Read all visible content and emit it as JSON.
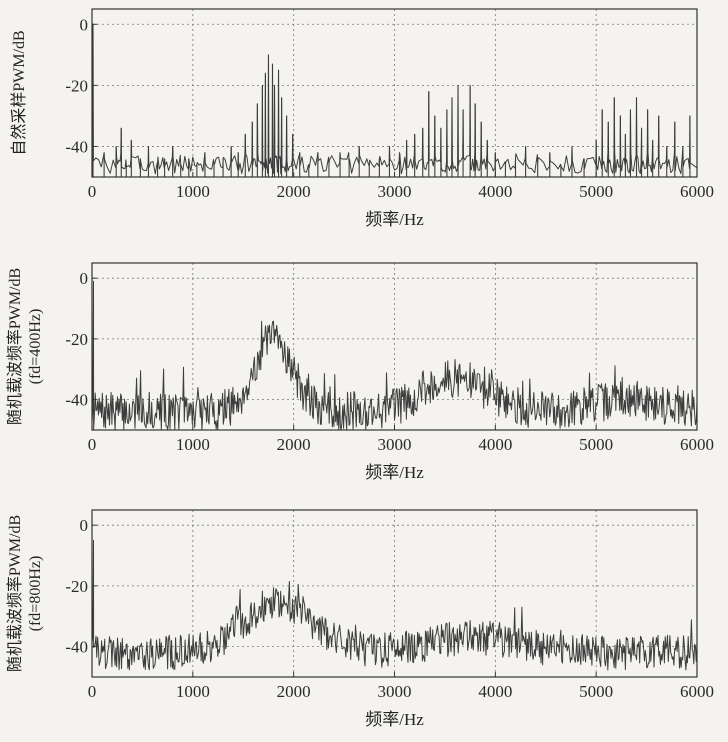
{
  "chart_data": [
    {
      "type": "line",
      "panel": "top",
      "xlabel": "频率/Hz",
      "ylabel_lines": [
        "自然采样PWM/dB"
      ],
      "xlim": [
        0,
        6000
      ],
      "ylim": [
        -50,
        5
      ],
      "xticks": [
        0,
        1000,
        2000,
        3000,
        4000,
        5000,
        6000
      ],
      "yticks": [
        0,
        -20,
        -40
      ],
      "grid": true,
      "signal": {
        "style": "line-spectrum",
        "noise_floor_db": -50,
        "peaks": [
          {
            "x": 10,
            "y": 0
          },
          {
            "x": 120,
            "y": -42
          },
          {
            "x": 240,
            "y": -40
          },
          {
            "x": 290,
            "y": -34
          },
          {
            "x": 340,
            "y": -46
          },
          {
            "x": 390,
            "y": -38
          },
          {
            "x": 480,
            "y": -44
          },
          {
            "x": 560,
            "y": -40
          },
          {
            "x": 650,
            "y": -46
          },
          {
            "x": 720,
            "y": -44
          },
          {
            "x": 800,
            "y": -40
          },
          {
            "x": 880,
            "y": -46
          },
          {
            "x": 960,
            "y": -44
          },
          {
            "x": 1040,
            "y": -46
          },
          {
            "x": 1120,
            "y": -42
          },
          {
            "x": 1210,
            "y": -46
          },
          {
            "x": 1300,
            "y": -44
          },
          {
            "x": 1380,
            "y": -40
          },
          {
            "x": 1450,
            "y": -42
          },
          {
            "x": 1520,
            "y": -36
          },
          {
            "x": 1590,
            "y": -32
          },
          {
            "x": 1640,
            "y": -26
          },
          {
            "x": 1690,
            "y": -20
          },
          {
            "x": 1720,
            "y": -16
          },
          {
            "x": 1750,
            "y": -10
          },
          {
            "x": 1790,
            "y": -13
          },
          {
            "x": 1810,
            "y": -20
          },
          {
            "x": 1850,
            "y": -15
          },
          {
            "x": 1880,
            "y": -24
          },
          {
            "x": 1930,
            "y": -30
          },
          {
            "x": 1990,
            "y": -36
          },
          {
            "x": 2060,
            "y": -42
          },
          {
            "x": 2150,
            "y": -46
          },
          {
            "x": 2240,
            "y": -42
          },
          {
            "x": 2350,
            "y": -46
          },
          {
            "x": 2460,
            "y": -42
          },
          {
            "x": 2550,
            "y": -46
          },
          {
            "x": 2650,
            "y": -40
          },
          {
            "x": 2750,
            "y": -46
          },
          {
            "x": 2850,
            "y": -44
          },
          {
            "x": 2950,
            "y": -40
          },
          {
            "x": 3050,
            "y": -42
          },
          {
            "x": 3120,
            "y": -38
          },
          {
            "x": 3200,
            "y": -36
          },
          {
            "x": 3280,
            "y": -34
          },
          {
            "x": 3340,
            "y": -22
          },
          {
            "x": 3400,
            "y": -30
          },
          {
            "x": 3460,
            "y": -34
          },
          {
            "x": 3520,
            "y": -28
          },
          {
            "x": 3570,
            "y": -24
          },
          {
            "x": 3630,
            "y": -20
          },
          {
            "x": 3680,
            "y": -28
          },
          {
            "x": 3750,
            "y": -20
          },
          {
            "x": 3800,
            "y": -26
          },
          {
            "x": 3860,
            "y": -32
          },
          {
            "x": 3920,
            "y": -38
          },
          {
            "x": 4000,
            "y": -42
          },
          {
            "x": 4100,
            "y": -46
          },
          {
            "x": 4200,
            "y": -44
          },
          {
            "x": 4300,
            "y": -40
          },
          {
            "x": 4420,
            "y": -46
          },
          {
            "x": 4540,
            "y": -42
          },
          {
            "x": 4650,
            "y": -46
          },
          {
            "x": 4760,
            "y": -40
          },
          {
            "x": 4880,
            "y": -44
          },
          {
            "x": 5000,
            "y": -38
          },
          {
            "x": 5060,
            "y": -28
          },
          {
            "x": 5120,
            "y": -32
          },
          {
            "x": 5180,
            "y": -24
          },
          {
            "x": 5240,
            "y": -30
          },
          {
            "x": 5290,
            "y": -36
          },
          {
            "x": 5340,
            "y": -28
          },
          {
            "x": 5400,
            "y": -24
          },
          {
            "x": 5450,
            "y": -34
          },
          {
            "x": 5510,
            "y": -28
          },
          {
            "x": 5560,
            "y": -38
          },
          {
            "x": 5620,
            "y": -30
          },
          {
            "x": 5700,
            "y": -40
          },
          {
            "x": 5780,
            "y": -32
          },
          {
            "x": 5860,
            "y": -40
          },
          {
            "x": 5930,
            "y": -30
          }
        ]
      }
    },
    {
      "type": "line",
      "panel": "middle",
      "xlabel": "频率/Hz",
      "ylabel_lines": [
        "随机载波频率PWM/dB",
        "(fd=400Hz)"
      ],
      "xlim": [
        0,
        6000
      ],
      "ylim": [
        -50,
        5
      ],
      "xticks": [
        0,
        1000,
        2000,
        3000,
        4000,
        5000,
        6000
      ],
      "yticks": [
        0,
        -20,
        -40
      ],
      "grid": true,
      "signal": {
        "style": "noise",
        "samples": 760,
        "seed": 7,
        "base_db": -44,
        "noise_db": 4,
        "spike": {
          "x": 15,
          "y": -1
        },
        "humps": [
          {
            "center": 1800,
            "width": 260,
            "height": 24
          },
          {
            "center": 3600,
            "width": 450,
            "height": 11
          },
          {
            "center": 5300,
            "width": 500,
            "height": 4
          }
        ]
      }
    },
    {
      "type": "line",
      "panel": "bottom",
      "xlabel": "频率/Hz",
      "ylabel_lines": [
        "随机载波频率PWM/dB",
        "(fd=800Hz)"
      ],
      "xlim": [
        0,
        6000
      ],
      "ylim": [
        -50,
        5
      ],
      "xticks": [
        0,
        1000,
        2000,
        3000,
        4000,
        5000,
        6000
      ],
      "yticks": [
        0,
        -20,
        -40
      ],
      "grid": true,
      "signal": {
        "style": "noise",
        "samples": 760,
        "seed": 19,
        "base_db": -42,
        "noise_db": 3.6,
        "spike": {
          "x": 15,
          "y": -5
        },
        "humps": [
          {
            "center": 1850,
            "width": 480,
            "height": 17
          },
          {
            "center": 3800,
            "width": 650,
            "height": 5
          }
        ]
      }
    }
  ]
}
